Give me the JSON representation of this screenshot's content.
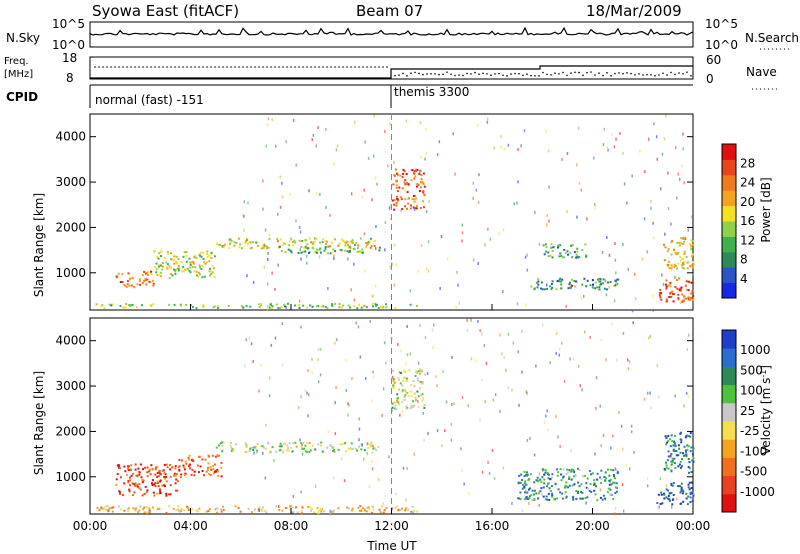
{
  "header": {
    "title": "Syowa East (fitACF)",
    "beam": "Beam 07",
    "date": "18/Mar/2009"
  },
  "top_panels": {
    "nsky_label": "N.Sky",
    "nsky_ticks": [
      "10^5",
      "10^0"
    ],
    "nsearch_label": "N.Search",
    "nsearch_ticks": [
      "10^5",
      "10^0"
    ],
    "freq_label": "Freq.",
    "freq_unit": "[MHz]",
    "freq_ticks": [
      "18",
      "8"
    ],
    "nave_label": "Nave",
    "nave_ticks": [
      "60",
      "0"
    ],
    "cpid_label": "CPID",
    "cpid_segments": [
      "normal (fast) -151",
      "themis 3300"
    ]
  },
  "chart_data": [
    {
      "type": "heatmap",
      "panel": "power",
      "ylabel": "Slant Range [km]",
      "xlabel": "",
      "y_ticks": [
        1000,
        2000,
        3000,
        4000
      ],
      "ylim": [
        180,
        4500
      ],
      "x_ticks_hours": [
        0,
        4,
        8,
        12,
        16,
        20,
        24
      ],
      "xlim_hours": [
        0,
        24
      ],
      "colorbar": {
        "label": "Power [dB]",
        "ticks": [
          "4",
          "8",
          "12",
          "16",
          "20",
          "24",
          "28"
        ],
        "colors": [
          "#1428e6",
          "#2a55c8",
          "#2f8a5a",
          "#3fb04a",
          "#8fd24a",
          "#f5e21e",
          "#f5a21e",
          "#f07a1e",
          "#e8441e",
          "#e01010"
        ]
      },
      "scatter_regions": [
        {
          "x": [
            1.0,
            2.5
          ],
          "y": [
            700,
            1050
          ],
          "level": 0.75
        },
        {
          "x": [
            2.5,
            5.0
          ],
          "y": [
            900,
            1500
          ],
          "level": 0.5
        },
        {
          "x": [
            5.0,
            11.5
          ],
          "y": [
            1550,
            1780
          ],
          "level": 0.55
        },
        {
          "x": [
            7.5,
            11.5
          ],
          "y": [
            1450,
            1600
          ],
          "level": 0.35
        },
        {
          "x": [
            12.0,
            13.3
          ],
          "y": [
            2400,
            3300
          ],
          "level": 0.8
        },
        {
          "x": [
            0.2,
            13.0
          ],
          "y": [
            240,
            340
          ],
          "level": 0.45
        },
        {
          "x": [
            18.0,
            19.8
          ],
          "y": [
            1350,
            1650
          ],
          "level": 0.3
        },
        {
          "x": [
            17.5,
            21.0
          ],
          "y": [
            650,
            900
          ],
          "level": 0.25
        },
        {
          "x": [
            22.5,
            24.0
          ],
          "y": [
            380,
            900
          ],
          "level": 0.85
        },
        {
          "x": [
            22.8,
            24.0
          ],
          "y": [
            1100,
            1800
          ],
          "level": 0.6
        }
      ]
    },
    {
      "type": "heatmap",
      "panel": "velocity",
      "ylabel": "Slant Range [km]",
      "xlabel": "Time UT",
      "y_ticks": [
        1000,
        2000,
        3000,
        4000
      ],
      "ylim": [
        180,
        4500
      ],
      "x_ticks_hours": [
        0,
        4,
        8,
        12,
        16,
        20,
        24
      ],
      "x_tick_labels": [
        "00:00",
        "04:00",
        "08:00",
        "12:00",
        "16:00",
        "20:00",
        "00:00"
      ],
      "xlim_hours": [
        0,
        24
      ],
      "colorbar": {
        "label": "Velocity [m s^-1]",
        "ticks": [
          "1000",
          "500",
          "100",
          "25",
          "-25",
          "-100",
          "-500",
          "-1000"
        ],
        "colors": [
          "#1f3fc8",
          "#2a6ed2",
          "#2f8a5a",
          "#4ec23c",
          "#c8c8c8",
          "#f5df50",
          "#f5a21e",
          "#f07020",
          "#e84020",
          "#e01010"
        ]
      },
      "scatter_regions": [
        {
          "x": [
            1.0,
            3.5
          ],
          "y": [
            600,
            1300
          ],
          "level": 0.85
        },
        {
          "x": [
            3.5,
            5.2
          ],
          "y": [
            1000,
            1500
          ],
          "level": 0.8
        },
        {
          "x": [
            5.0,
            11.5
          ],
          "y": [
            1550,
            1780
          ],
          "level": 0.45
        },
        {
          "x": [
            12.0,
            13.3
          ],
          "y": [
            2500,
            3400
          ],
          "level": 0.45
        },
        {
          "x": [
            0.2,
            13.0
          ],
          "y": [
            220,
            380
          ],
          "level": 0.6
        },
        {
          "x": [
            17.0,
            21.0
          ],
          "y": [
            500,
            1200
          ],
          "level": 0.25
        },
        {
          "x": [
            22.5,
            24.0
          ],
          "y": [
            400,
            900
          ],
          "level": 0.1
        },
        {
          "x": [
            22.8,
            24.0
          ],
          "y": [
            1100,
            2000
          ],
          "level": 0.2
        }
      ]
    }
  ]
}
